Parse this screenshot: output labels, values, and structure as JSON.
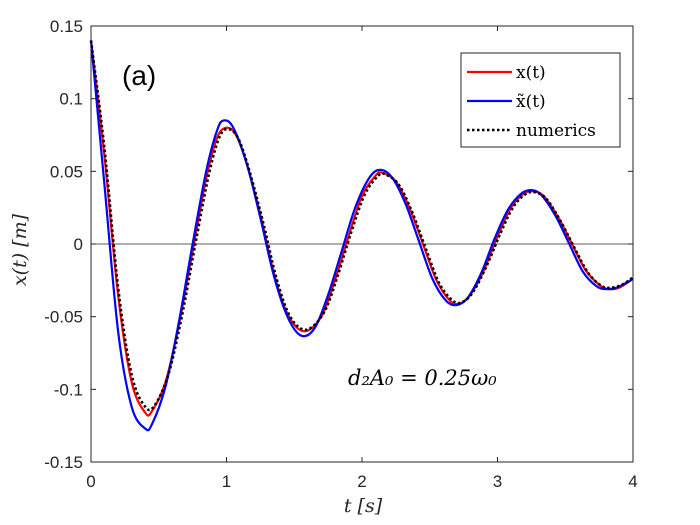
{
  "chart_data": {
    "type": "line",
    "panel_label": "(a)",
    "xlabel": "t [s]",
    "ylabel": "x(t) [m]",
    "xlim": [
      0,
      4
    ],
    "ylim": [
      -0.15,
      0.15
    ],
    "xticks": [
      0,
      1,
      2,
      3,
      4
    ],
    "yticks": [
      -0.15,
      -0.1,
      -0.05,
      0,
      0.05,
      0.1,
      0.15
    ],
    "ytick_labels": [
      "-0.15",
      "-0.1",
      "-0.05",
      "0",
      "0.05",
      "0.1",
      "0.15"
    ],
    "legend_position": "top-right",
    "annotation": "d₂A₀ = 0.25ω₀",
    "zero_line": true,
    "grid": false,
    "colors": {
      "x": "#ff0000",
      "x_tilde": "#0000ff",
      "numerics": "#000000"
    },
    "series": [
      {
        "name": "x(t)",
        "style": "solid",
        "color": "#ff0000",
        "points": [
          [
            0,
            0.14
          ],
          [
            0.1,
            0.06
          ],
          [
            0.2,
            -0.035
          ],
          [
            0.3,
            -0.095
          ],
          [
            0.4,
            -0.116
          ],
          [
            0.45,
            -0.115
          ],
          [
            0.55,
            -0.095
          ],
          [
            0.65,
            -0.055
          ],
          [
            0.75,
            -0.005
          ],
          [
            0.85,
            0.045
          ],
          [
            0.93,
            0.073
          ],
          [
            1.0,
            0.08
          ],
          [
            1.07,
            0.075
          ],
          [
            1.15,
            0.055
          ],
          [
            1.25,
            0.02
          ],
          [
            1.35,
            -0.02
          ],
          [
            1.45,
            -0.048
          ],
          [
            1.57,
            -0.06
          ],
          [
            1.7,
            -0.05
          ],
          [
            1.8,
            -0.025
          ],
          [
            1.9,
            0.005
          ],
          [
            2.0,
            0.033
          ],
          [
            2.1,
            0.047
          ],
          [
            2.15,
            0.049
          ],
          [
            2.25,
            0.043
          ],
          [
            2.35,
            0.025
          ],
          [
            2.45,
            0.0
          ],
          [
            2.55,
            -0.025
          ],
          [
            2.65,
            -0.039
          ],
          [
            2.72,
            -0.041
          ],
          [
            2.8,
            -0.035
          ],
          [
            2.9,
            -0.018
          ],
          [
            3.0,
            0.005
          ],
          [
            3.1,
            0.025
          ],
          [
            3.2,
            0.035
          ],
          [
            3.28,
            0.036
          ],
          [
            3.35,
            0.032
          ],
          [
            3.45,
            0.018
          ],
          [
            3.55,
            0.0
          ],
          [
            3.65,
            -0.018
          ],
          [
            3.75,
            -0.028
          ],
          [
            3.82,
            -0.031
          ],
          [
            3.9,
            -0.03
          ],
          [
            4.0,
            -0.024
          ]
        ]
      },
      {
        "name": "x̃(t)",
        "style": "solid",
        "color": "#0000ff",
        "points": [
          [
            0,
            0.14
          ],
          [
            0.1,
            0.04
          ],
          [
            0.2,
            -0.06
          ],
          [
            0.3,
            -0.112
          ],
          [
            0.4,
            -0.127
          ],
          [
            0.45,
            -0.124
          ],
          [
            0.55,
            -0.098
          ],
          [
            0.65,
            -0.053
          ],
          [
            0.75,
            0.0
          ],
          [
            0.85,
            0.05
          ],
          [
            0.93,
            0.078
          ],
          [
            0.98,
            0.085
          ],
          [
            1.05,
            0.08
          ],
          [
            1.15,
            0.055
          ],
          [
            1.25,
            0.018
          ],
          [
            1.35,
            -0.022
          ],
          [
            1.45,
            -0.05
          ],
          [
            1.55,
            -0.063
          ],
          [
            1.65,
            -0.058
          ],
          [
            1.75,
            -0.035
          ],
          [
            1.85,
            -0.005
          ],
          [
            1.95,
            0.025
          ],
          [
            2.05,
            0.045
          ],
          [
            2.13,
            0.051
          ],
          [
            2.22,
            0.046
          ],
          [
            2.32,
            0.028
          ],
          [
            2.42,
            0.002
          ],
          [
            2.52,
            -0.024
          ],
          [
            2.62,
            -0.039
          ],
          [
            2.7,
            -0.042
          ],
          [
            2.78,
            -0.037
          ],
          [
            2.88,
            -0.02
          ],
          [
            2.98,
            0.004
          ],
          [
            3.08,
            0.024
          ],
          [
            3.18,
            0.035
          ],
          [
            3.26,
            0.037
          ],
          [
            3.33,
            0.033
          ],
          [
            3.43,
            0.019
          ],
          [
            3.53,
            0.0
          ],
          [
            3.63,
            -0.019
          ],
          [
            3.73,
            -0.029
          ],
          [
            3.8,
            -0.031
          ],
          [
            3.88,
            -0.03
          ],
          [
            4.0,
            -0.024
          ]
        ]
      },
      {
        "name": "numerics",
        "style": "dotted",
        "color": "#000000",
        "points": [
          [
            0,
            0.14
          ],
          [
            0.1,
            0.065
          ],
          [
            0.2,
            -0.03
          ],
          [
            0.3,
            -0.09
          ],
          [
            0.4,
            -0.112
          ],
          [
            0.47,
            -0.111
          ],
          [
            0.57,
            -0.09
          ],
          [
            0.67,
            -0.05
          ],
          [
            0.77,
            0.0
          ],
          [
            0.87,
            0.048
          ],
          [
            0.95,
            0.074
          ],
          [
            1.02,
            0.079
          ],
          [
            1.09,
            0.072
          ],
          [
            1.17,
            0.05
          ],
          [
            1.27,
            0.015
          ],
          [
            1.37,
            -0.024
          ],
          [
            1.47,
            -0.05
          ],
          [
            1.59,
            -0.059
          ],
          [
            1.72,
            -0.047
          ],
          [
            1.82,
            -0.022
          ],
          [
            1.92,
            0.008
          ],
          [
            2.02,
            0.034
          ],
          [
            2.12,
            0.047
          ],
          [
            2.17,
            0.048
          ],
          [
            2.27,
            0.041
          ],
          [
            2.37,
            0.022
          ],
          [
            2.47,
            -0.003
          ],
          [
            2.57,
            -0.027
          ],
          [
            2.67,
            -0.039
          ],
          [
            2.74,
            -0.04
          ],
          [
            2.82,
            -0.033
          ],
          [
            2.92,
            -0.015
          ],
          [
            3.02,
            0.007
          ],
          [
            3.12,
            0.026
          ],
          [
            3.22,
            0.035
          ],
          [
            3.3,
            0.035
          ],
          [
            3.37,
            0.03
          ],
          [
            3.47,
            0.015
          ],
          [
            3.57,
            -0.003
          ],
          [
            3.67,
            -0.02
          ],
          [
            3.77,
            -0.029
          ],
          [
            3.84,
            -0.03
          ],
          [
            3.92,
            -0.028
          ],
          [
            4.0,
            -0.023
          ]
        ]
      }
    ]
  }
}
